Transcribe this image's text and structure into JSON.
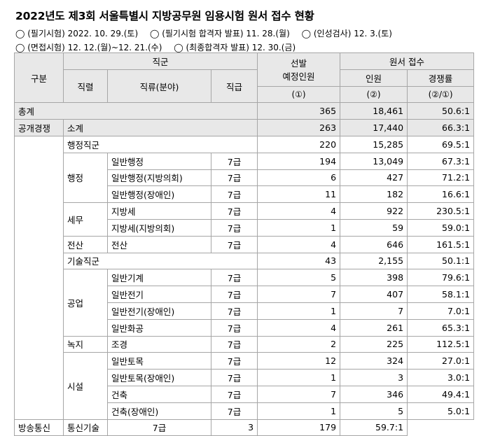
{
  "title": "2022년도 제3회 서울특별시 지방공무원 임용시험 원서 접수 현황",
  "schedule_line1": [
    "◯ (필기시험) 2022. 10. 29.(토)",
    "◯ (필기시험 합격자 발표) 11. 28.(월)",
    "◯ (인성검사) 12. 3.(토)"
  ],
  "schedule_line2": [
    "◯ (면접시험) 12. 12.(월)~12. 21.(수)",
    "◯ (최종합격자 발표) 12. 30.(금)"
  ],
  "header": {
    "category": "구분",
    "job_group": "직군",
    "series": "직렬",
    "field": "직류(분야)",
    "grade": "직급",
    "selection_line1": "선발",
    "selection_line2": "예정인원",
    "selection_ref": "(①)",
    "applications": "원서 접수",
    "applicants": "인원",
    "applicants_ref": "(②)",
    "competition": "경쟁률",
    "competition_ref": "(②/①)"
  },
  "rows": {
    "total": {
      "label": "총계",
      "selection": "365",
      "applicants": "18,461",
      "ratio": "50.6:1"
    },
    "open_subtotal": {
      "cat": "공개경쟁",
      "label": "소계",
      "selection": "263",
      "applicants": "17,440",
      "ratio": "66.3:1"
    },
    "admin_group": {
      "label": "행정직군",
      "selection": "220",
      "applicants": "15,285",
      "ratio": "69.5:1"
    },
    "r1": {
      "series": "행정",
      "field": "일반행정",
      "grade": "7급",
      "selection": "194",
      "applicants": "13,049",
      "ratio": "67.3:1"
    },
    "r2": {
      "field": "일반행정(지방의회)",
      "grade": "7급",
      "selection": "6",
      "applicants": "427",
      "ratio": "71.2:1"
    },
    "r3": {
      "field": "일반행정(장애인)",
      "grade": "7급",
      "selection": "11",
      "applicants": "182",
      "ratio": "16.6:1"
    },
    "r4": {
      "series": "세무",
      "field": "지방세",
      "grade": "7급",
      "selection": "4",
      "applicants": "922",
      "ratio": "230.5:1"
    },
    "r5": {
      "field": "지방세(지방의회)",
      "grade": "7급",
      "selection": "1",
      "applicants": "59",
      "ratio": "59.0:1"
    },
    "r6": {
      "series": "전산",
      "field": "전산",
      "grade": "7급",
      "selection": "4",
      "applicants": "646",
      "ratio": "161.5:1"
    },
    "tech_group": {
      "label": "기술직군",
      "selection": "43",
      "applicants": "2,155",
      "ratio": "50.1:1"
    },
    "r7": {
      "series": "공업",
      "field": "일반기계",
      "grade": "7급",
      "selection": "5",
      "applicants": "398",
      "ratio": "79.6:1"
    },
    "r8": {
      "field": "일반전기",
      "grade": "7급",
      "selection": "7",
      "applicants": "407",
      "ratio": "58.1:1"
    },
    "r9": {
      "field": "일반전기(장애인)",
      "grade": "7급",
      "selection": "1",
      "applicants": "7",
      "ratio": "7.0:1"
    },
    "r10": {
      "field": "일반화공",
      "grade": "7급",
      "selection": "4",
      "applicants": "261",
      "ratio": "65.3:1"
    },
    "r11": {
      "series": "녹지",
      "field": "조경",
      "grade": "7급",
      "selection": "2",
      "applicants": "225",
      "ratio": "112.5:1"
    },
    "r12": {
      "series": "시설",
      "field": "일반토목",
      "grade": "7급",
      "selection": "12",
      "applicants": "324",
      "ratio": "27.0:1"
    },
    "r13": {
      "field": "일반토목(장애인)",
      "grade": "7급",
      "selection": "1",
      "applicants": "3",
      "ratio": "3.0:1"
    },
    "r14": {
      "field": "건축",
      "grade": "7급",
      "selection": "7",
      "applicants": "346",
      "ratio": "49.4:1"
    },
    "r15": {
      "field": "건축(장애인)",
      "grade": "7급",
      "selection": "1",
      "applicants": "5",
      "ratio": "5.0:1"
    },
    "r16": {
      "series": "방송통신",
      "field": "통신기술",
      "grade": "7급",
      "selection": "3",
      "applicants": "179",
      "ratio": "59.7:1"
    }
  }
}
